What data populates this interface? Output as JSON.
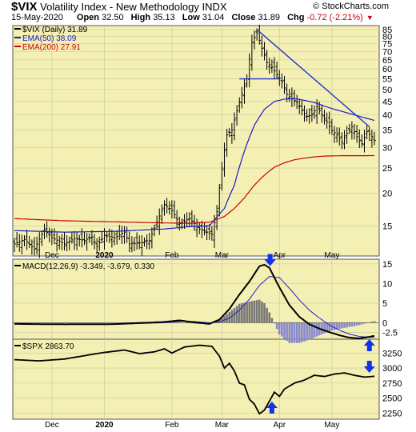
{
  "header": {
    "symbol": "$VIX",
    "name": "Volatility Index - New Methodology",
    "exchange": "INDX",
    "date": "15-May-2020",
    "open_label": "Open",
    "open": "32.50",
    "high_label": "High",
    "high": "35.13",
    "low_label": "Low",
    "low": "31.04",
    "close_label": "Close",
    "close": "31.89",
    "chg_label": "Chg",
    "chg": "-0.72 (-2.21%)",
    "credit": "© StockCharts.com"
  },
  "legends": {
    "price": "$VIX (Daily) 31.89",
    "ema50": "EMA(50) 38.09",
    "ema200": "EMA(200) 27.91",
    "macd": "MACD(12,26,9) -3.349, -3.679, 0.330",
    "spx": "$SPX 2863.70"
  },
  "colors": {
    "panel_bg": "#f4f0b4",
    "grid": "#c8c4a0",
    "price": "#000000",
    "ema50": "#1a1acc",
    "ema200": "#cc0000",
    "trendline": "#2233cc",
    "macd_line": "#000000",
    "signal_line": "#2222cc",
    "histogram": "#8888cc",
    "arrow": "#1133ee"
  },
  "chart_data": [
    {
      "type": "line",
      "panel": "price",
      "title": "$VIX Volatility Index - New Methodology INDX",
      "yscale": "log",
      "ylim": [
        11.5,
        88
      ],
      "y_ticks": [
        15,
        20,
        25,
        30,
        35,
        40,
        45,
        50,
        55,
        60,
        65,
        70,
        75,
        80,
        85
      ],
      "x_tick_labels": [
        "Dec",
        "2020",
        "Feb",
        "Mar",
        "Apr",
        "May"
      ],
      "x_tick_index": [
        15,
        36,
        63,
        83,
        106,
        127
      ],
      "n_days": 145,
      "series": [
        {
          "name": "$VIX (Daily) 31.89",
          "kind": "bar",
          "anchors": [
            [
              0,
              12.8
            ],
            [
              4,
              13.3
            ],
            [
              8,
              12.2
            ],
            [
              12,
              14.5
            ],
            [
              15,
              13.5
            ],
            [
              20,
              12.8
            ],
            [
              24,
              13.4
            ],
            [
              28,
              13.2
            ],
            [
              31,
              13.6
            ],
            [
              33,
              12.5
            ],
            [
              36,
              13.8
            ],
            [
              40,
              13.5
            ],
            [
              44,
              14.2
            ],
            [
              46,
              12.8
            ],
            [
              50,
              12.9
            ],
            [
              54,
              13.2
            ],
            [
              57,
              15.5
            ],
            [
              60,
              18.1
            ],
            [
              63,
              17.2
            ],
            [
              66,
              15.3
            ],
            [
              70,
              16.0
            ],
            [
              74,
              14.6
            ],
            [
              77,
              14.2
            ],
            [
              79,
              13.9
            ],
            [
              81,
              17.0
            ],
            [
              83,
              25.0
            ],
            [
              85,
              33.5
            ],
            [
              87,
              35.0
            ],
            [
              89,
              41.5
            ],
            [
              91,
              48.0
            ],
            [
              93,
              55.0
            ],
            [
              95,
              76.0
            ],
            [
              97,
              82.5
            ],
            [
              99,
              72.0
            ],
            [
              101,
              63.5
            ],
            [
              103,
              61.0
            ],
            [
              105,
              57.0
            ],
            [
              107,
              53.5
            ],
            [
              109,
              48.0
            ],
            [
              111,
              46.0
            ],
            [
              113,
              44.8
            ],
            [
              115,
              41.5
            ],
            [
              117,
              39.5
            ],
            [
              119,
              40.0
            ],
            [
              121,
              43.0
            ],
            [
              123,
              40.0
            ],
            [
              125,
              37.5
            ],
            [
              127,
              34.8
            ],
            [
              129,
              33.5
            ],
            [
              131,
              31.5
            ],
            [
              133,
              34.0
            ],
            [
              135,
              36.0
            ],
            [
              137,
              33.0
            ],
            [
              139,
              31.0
            ],
            [
              141,
              34.5
            ],
            [
              143,
              33.0
            ],
            [
              144,
              31.89
            ]
          ]
        },
        {
          "name": "EMA(50) 38.09",
          "kind": "line",
          "anchors": [
            [
              0,
              14.4
            ],
            [
              20,
              14.2
            ],
            [
              40,
              14.3
            ],
            [
              60,
              14.6
            ],
            [
              70,
              14.9
            ],
            [
              78,
              15.0
            ],
            [
              84,
              17.5
            ],
            [
              88,
              21.5
            ],
            [
              92,
              29.0
            ],
            [
              96,
              36.5
            ],
            [
              100,
              42.0
            ],
            [
              104,
              45.0
            ],
            [
              108,
              46.0
            ],
            [
              112,
              46.2
            ],
            [
              116,
              45.5
            ],
            [
              120,
              44.6
            ],
            [
              124,
              43.2
            ],
            [
              128,
              42.0
            ],
            [
              132,
              41.0
            ],
            [
              136,
              40.0
            ],
            [
              140,
              39.0
            ],
            [
              144,
              38.09
            ]
          ]
        },
        {
          "name": "EMA(200) 27.91",
          "kind": "line",
          "anchors": [
            [
              0,
              16.0
            ],
            [
              20,
              15.7
            ],
            [
              40,
              15.55
            ],
            [
              60,
              15.4
            ],
            [
              70,
              15.35
            ],
            [
              78,
              15.5
            ],
            [
              84,
              16.3
            ],
            [
              88,
              17.5
            ],
            [
              92,
              19.2
            ],
            [
              96,
              21.5
            ],
            [
              100,
              23.5
            ],
            [
              104,
              25.2
            ],
            [
              108,
              26.2
            ],
            [
              112,
              26.9
            ],
            [
              116,
              27.3
            ],
            [
              120,
              27.6
            ],
            [
              124,
              27.8
            ],
            [
              128,
              27.85
            ],
            [
              132,
              27.9
            ],
            [
              136,
              27.9
            ],
            [
              140,
              27.9
            ],
            [
              144,
              27.91
            ]
          ]
        }
      ]
    },
    {
      "type": "line",
      "panel": "macd",
      "title": "MACD(12,26,9) -3.349, -3.679, 0.330",
      "ylim": [
        -4.2,
        16.2
      ],
      "y_ticks": [
        -2.5,
        0,
        5,
        10,
        15
      ],
      "series": [
        {
          "name": "MACD",
          "anchors": [
            [
              0,
              -0.3
            ],
            [
              20,
              -0.4
            ],
            [
              40,
              -0.35
            ],
            [
              60,
              0.2
            ],
            [
              66,
              0.6
            ],
            [
              72,
              0.1
            ],
            [
              78,
              -0.3
            ],
            [
              82,
              0.8
            ],
            [
              86,
              3.5
            ],
            [
              90,
              7.2
            ],
            [
              94,
              10.5
            ],
            [
              98,
              14.4
            ],
            [
              100,
              14.8
            ],
            [
              102,
              14.0
            ],
            [
              106,
              9.0
            ],
            [
              110,
              4.5
            ],
            [
              114,
              1.5
            ],
            [
              118,
              -0.4
            ],
            [
              122,
              -1.5
            ],
            [
              126,
              -2.4
            ],
            [
              130,
              -3.2
            ],
            [
              134,
              -3.8
            ],
            [
              138,
              -4.0
            ],
            [
              142,
              -3.6
            ],
            [
              144,
              -3.349
            ]
          ]
        },
        {
          "name": "Signal",
          "anchors": [
            [
              0,
              -0.3
            ],
            [
              20,
              -0.4
            ],
            [
              40,
              -0.4
            ],
            [
              60,
              0.0
            ],
            [
              66,
              0.4
            ],
            [
              72,
              0.3
            ],
            [
              78,
              0.0
            ],
            [
              82,
              0.2
            ],
            [
              86,
              1.2
            ],
            [
              90,
              3.2
            ],
            [
              94,
              6.0
            ],
            [
              98,
              9.5
            ],
            [
              102,
              11.8
            ],
            [
              106,
              11.5
            ],
            [
              110,
              8.8
            ],
            [
              114,
              5.8
            ],
            [
              118,
              3.2
            ],
            [
              122,
              1.2
            ],
            [
              126,
              -0.6
            ],
            [
              130,
              -1.9
            ],
            [
              134,
              -2.9
            ],
            [
              138,
              -3.5
            ],
            [
              142,
              -3.7
            ],
            [
              144,
              -3.679
            ]
          ]
        }
      ]
    },
    {
      "type": "line",
      "panel": "spx",
      "title": "$SPX 2863.70",
      "ylim": [
        2150,
        3480
      ],
      "y_ticks": [
        2250,
        2500,
        2750,
        3000,
        3250
      ],
      "series": [
        {
          "name": "$SPX 2863.70",
          "anchors": [
            [
              0,
              3140
            ],
            [
              10,
              3120
            ],
            [
              20,
              3150
            ],
            [
              30,
              3220
            ],
            [
              36,
              3260
            ],
            [
              44,
              3300
            ],
            [
              50,
              3240
            ],
            [
              56,
              3270
            ],
            [
              60,
              3320
            ],
            [
              63,
              3250
            ],
            [
              68,
              3350
            ],
            [
              74,
              3380
            ],
            [
              79,
              3360
            ],
            [
              82,
              3200
            ],
            [
              84,
              3000
            ],
            [
              86,
              3080
            ],
            [
              88,
              2950
            ],
            [
              90,
              2750
            ],
            [
              92,
              2720
            ],
            [
              94,
              2480
            ],
            [
              96,
              2400
            ],
            [
              98,
              2240
            ],
            [
              100,
              2300
            ],
            [
              102,
              2450
            ],
            [
              104,
              2600
            ],
            [
              106,
              2530
            ],
            [
              108,
              2650
            ],
            [
              112,
              2750
            ],
            [
              116,
              2800
            ],
            [
              120,
              2880
            ],
            [
              124,
              2860
            ],
            [
              128,
              2900
            ],
            [
              132,
              2920
            ],
            [
              136,
              2880
            ],
            [
              140,
              2850
            ],
            [
              144,
              2863.7
            ]
          ]
        }
      ]
    }
  ]
}
